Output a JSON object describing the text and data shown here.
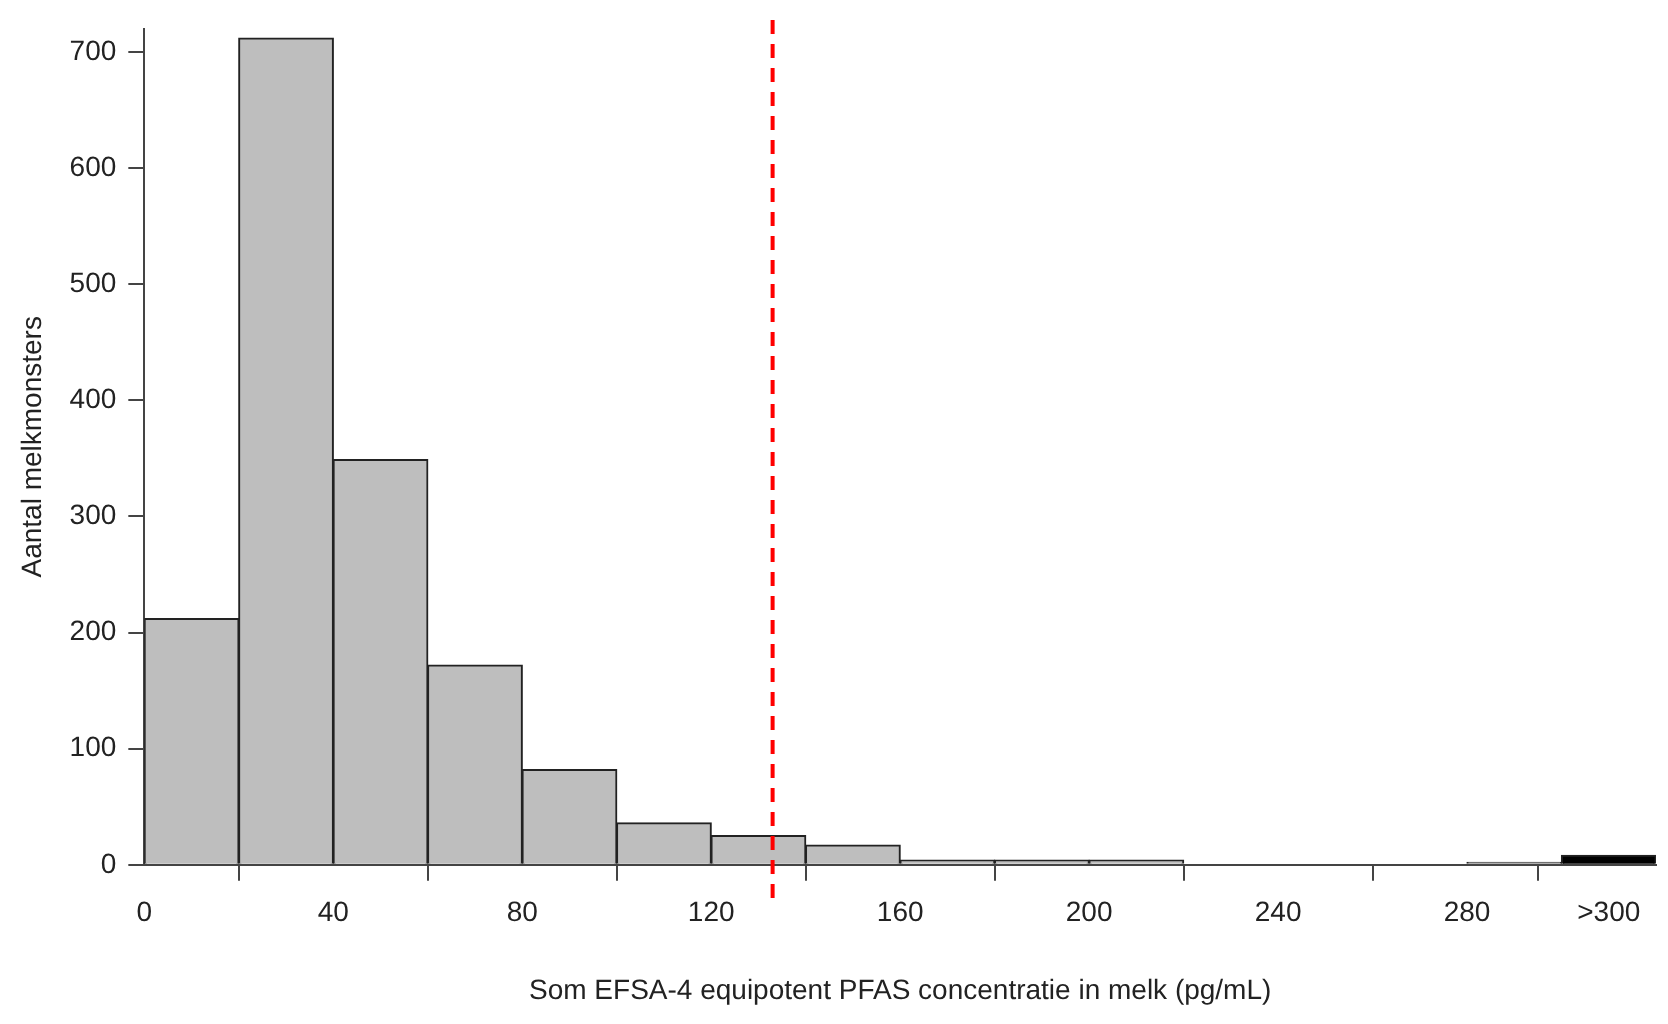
{
  "chart_data": {
    "type": "histogram",
    "xlabel": "Som EFSA-4 equipotent PFAS concentratie in melk (pg/mL)",
    "ylabel": "Aantal melkmonsters",
    "bins": [
      0,
      20,
      40,
      60,
      80,
      100,
      120,
      140,
      160,
      180,
      200,
      220,
      240,
      260,
      280,
      300,
      320
    ],
    "values": [
      212,
      712,
      349,
      172,
      82,
      36,
      25,
      17,
      4,
      4,
      4,
      0,
      0,
      0,
      2,
      8
    ],
    "colors": [
      "#bebebe",
      "#bebebe",
      "#bebebe",
      "#bebebe",
      "#bebebe",
      "#bebebe",
      "#bebebe",
      "#bebebe",
      "#bebebe",
      "#bebebe",
      "#bebebe",
      "#bebebe",
      "#bebebe",
      "#bebebe",
      "#bebebe",
      "#000000"
    ],
    "xlim": [
      0,
      320
    ],
    "xticks": [
      0,
      40,
      80,
      120,
      160,
      200,
      240,
      280,
      {
        "value": 310,
        "label": ">300"
      }
    ],
    "ylim": [
      0,
      720
    ],
    "yticks": [
      0,
      100,
      200,
      300,
      400,
      500,
      600,
      700
    ],
    "ref_lines": [
      {
        "axis": "x",
        "value": 133,
        "color": "#ff0000",
        "line_style": "dashed"
      }
    ],
    "grid": false,
    "legend": false
  }
}
